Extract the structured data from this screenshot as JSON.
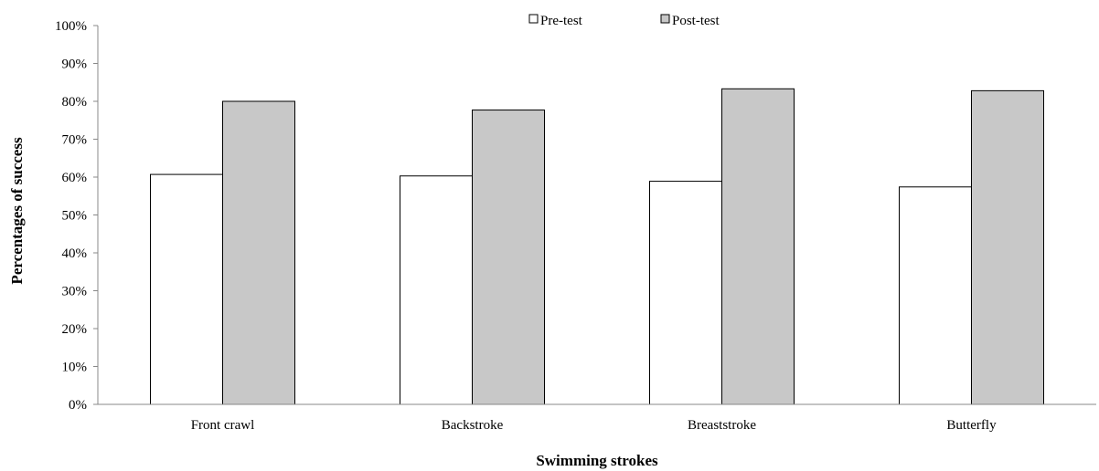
{
  "chart_data": {
    "type": "bar",
    "title": "",
    "xlabel": "Swimming strokes",
    "ylabel": "Percentages of success",
    "categories": [
      "Front crawl",
      "Backstroke",
      "Breaststroke",
      "Butterfly"
    ],
    "series": [
      {
        "name": "Pre-test",
        "values": [
          60.7,
          60.3,
          58.9,
          57.4
        ],
        "color": "#ffffff"
      },
      {
        "name": "Post-test",
        "values": [
          80.0,
          77.7,
          83.3,
          82.8
        ],
        "color": "#c8c8c8"
      }
    ],
    "ylim": [
      0,
      100
    ],
    "yticks": [
      "0%",
      "10%",
      "20%",
      "30%",
      "40%",
      "50%",
      "60%",
      "70%",
      "80%",
      "90%",
      "100%"
    ],
    "grid": false,
    "legend_position": "top-center",
    "bar_outline_color": "#000000"
  }
}
